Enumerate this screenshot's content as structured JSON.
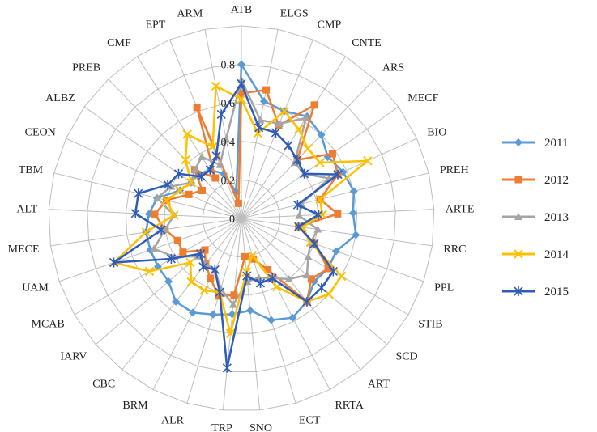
{
  "chart_data": {
    "type": "radar",
    "categories": [
      "ATB",
      "ELGS",
      "CMP",
      "CNTE",
      "ARS",
      "MECF",
      "BIO",
      "PREH",
      "ARTE",
      "RRC",
      "PPL",
      "STIB",
      "SCD",
      "ART",
      "RRTA",
      "ECT",
      "SNO",
      "TRP",
      "ALR",
      "BRM",
      "CBC",
      "IARV",
      "MCAB",
      "UAM",
      "MECE",
      "ALT",
      "TBM",
      "CEON",
      "ALBZ",
      "PREB",
      "CMF",
      "EPT",
      "ARM"
    ],
    "rlim": [
      0,
      1
    ],
    "ticks": [
      "0",
      "0.2",
      "0.4",
      "0.6",
      "0.8"
    ],
    "tick_values": [
      0,
      0.2,
      0.4,
      0.6,
      0.8
    ],
    "grid": true,
    "legend_position": "right",
    "series": [
      {
        "name": "2011",
        "color": "#5b9bd5",
        "marker": "diamond",
        "values": [
          0.8,
          0.62,
          0.6,
          0.63,
          0.6,
          0.55,
          0.58,
          0.6,
          0.58,
          0.6,
          0.52,
          0.52,
          0.5,
          0.55,
          0.58,
          0.55,
          0.48,
          0.5,
          0.52,
          0.55,
          0.55,
          0.5,
          0.5,
          0.5,
          0.5,
          0.48,
          0.45,
          0.35,
          0.32,
          0.32,
          0.3,
          0.25,
          0.14
        ]
      },
      {
        "name": "2012",
        "color": "#ed7d31",
        "marker": "square",
        "values": [
          0.65,
          0.68,
          0.52,
          0.7,
          0.42,
          0.58,
          0.55,
          0.42,
          0.5,
          0.3,
          0.4,
          0.52,
          0.48,
          0.55,
          0.3,
          0.22,
          0.2,
          0.4,
          0.42,
          0.35,
          0.3,
          0.25,
          0.35,
          0.35,
          0.4,
          0.45,
          0.4,
          0.3,
          0.25,
          0.35,
          0.25,
          0.62,
          0.08
        ]
      },
      {
        "name": "2013",
        "color": "#a5a5a5",
        "marker": "triangle",
        "values": [
          0.72,
          0.52,
          0.53,
          0.62,
          0.4,
          0.4,
          0.5,
          0.32,
          0.3,
          0.4,
          0.38,
          0.4,
          0.45,
          0.4,
          0.35,
          0.32,
          0.33,
          0.45,
          0.38,
          0.3,
          0.3,
          0.3,
          0.4,
          0.48,
          0.4,
          0.35,
          0.45,
          0.4,
          0.32,
          0.35,
          0.38,
          0.3,
          0.42
        ]
      },
      {
        "name": "2014",
        "color": "#ffc000",
        "marker": "x",
        "values": [
          0.62,
          0.45,
          0.6,
          0.55,
          0.5,
          0.5,
          0.72,
          0.42,
          0.42,
          0.32,
          0.38,
          0.6,
          0.6,
          0.55,
          0.4,
          0.2,
          0.28,
          0.6,
          0.4,
          0.42,
          0.42,
          0.35,
          0.55,
          0.7,
          0.5,
          0.35,
          0.4,
          0.35,
          0.32,
          0.42,
          0.52,
          0.4,
          0.7
        ]
      },
      {
        "name": "2015",
        "color": "#2e5cb8",
        "marker": "star",
        "values": [
          0.7,
          0.48,
          0.48,
          0.45,
          0.42,
          0.4,
          0.55,
          0.3,
          0.4,
          0.3,
          0.4,
          0.55,
          0.55,
          0.55,
          0.35,
          0.35,
          0.3,
          0.78,
          0.4,
          0.3,
          0.32,
          0.28,
          0.42,
          0.7,
          0.42,
          0.55,
          0.55,
          0.42,
          0.4,
          0.3,
          0.3,
          0.35,
          0.55
        ]
      }
    ]
  }
}
